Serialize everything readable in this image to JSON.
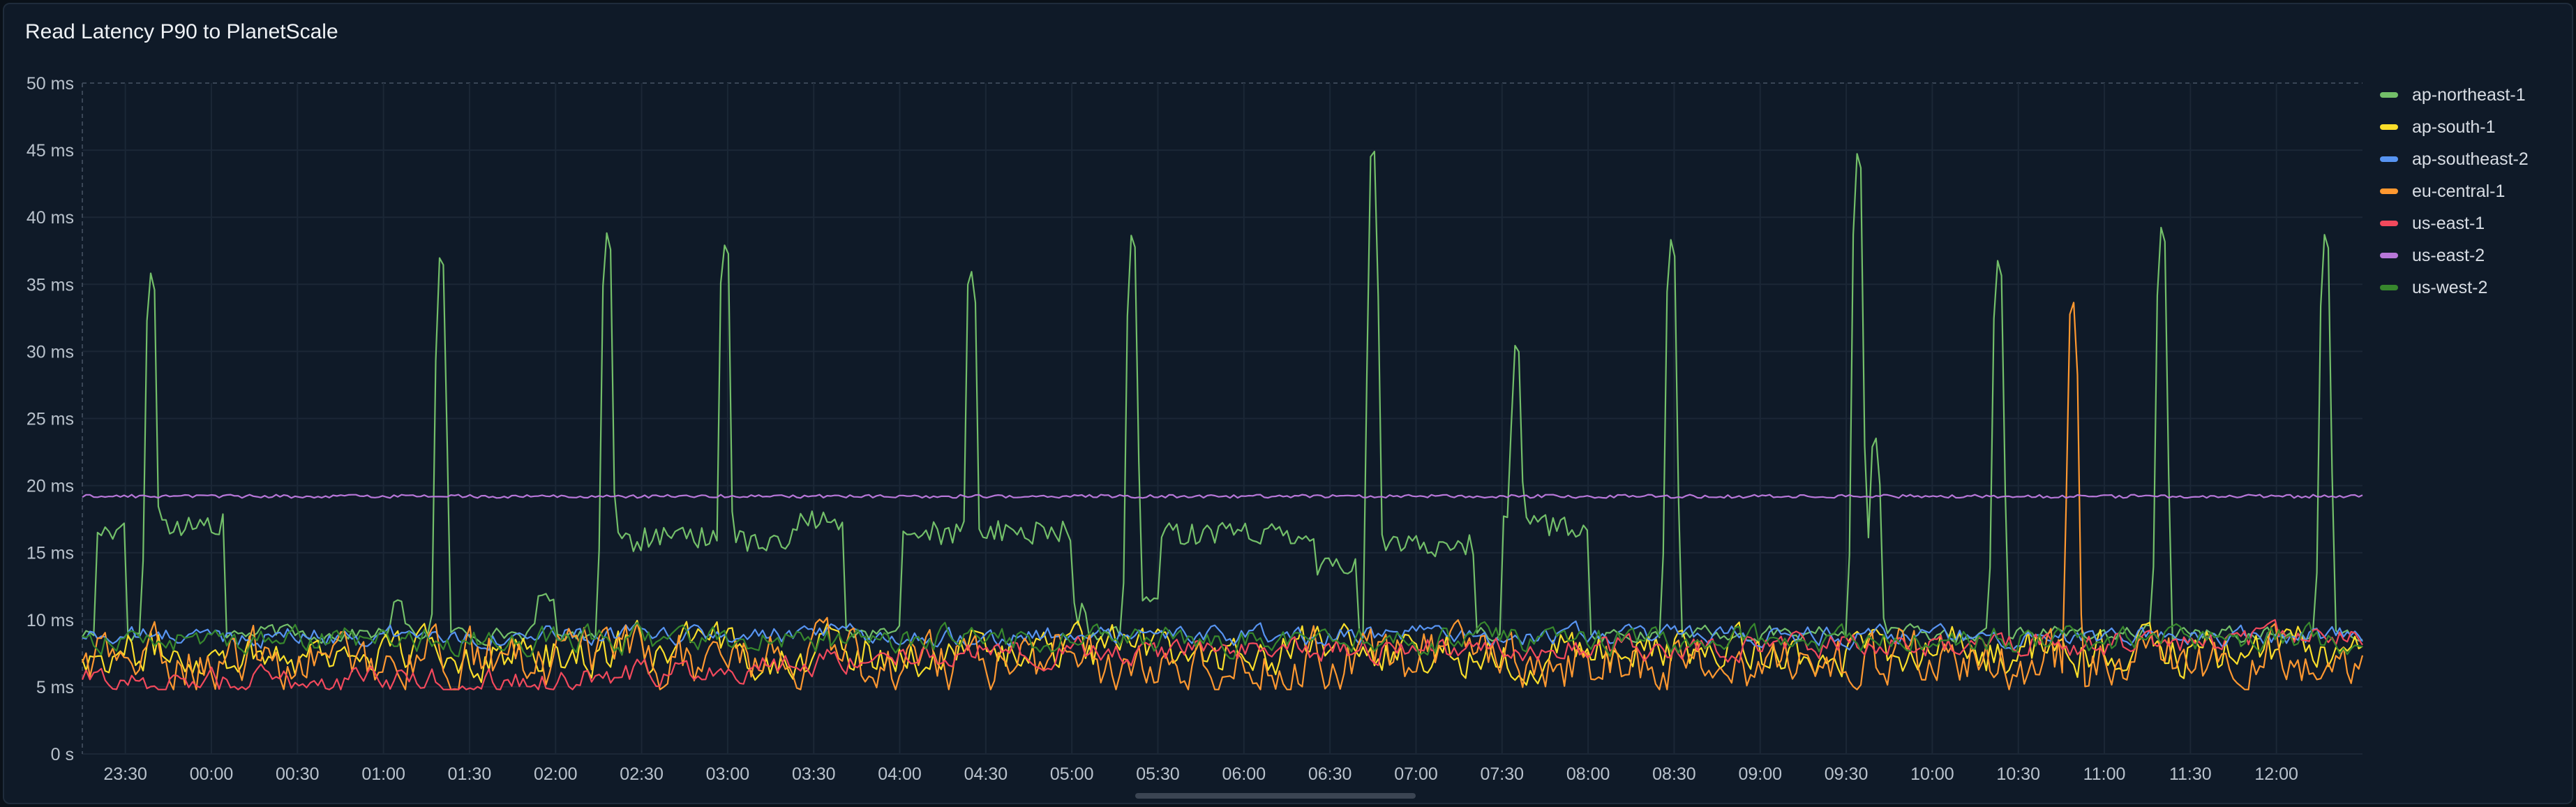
{
  "panel": {
    "title": "Read Latency P90 to PlanetScale"
  },
  "colors": {
    "background": "#0f1a28",
    "grid": "#1b2736",
    "axis_text": "#b9c2cc",
    "dashed_max": "#3a4656"
  },
  "chart_data": {
    "type": "line",
    "title": "Read Latency P90 to PlanetScale",
    "xlabel": "",
    "ylabel": "",
    "unit": "ms",
    "ylim": [
      0,
      50
    ],
    "y_ticks": [
      {
        "value": 0,
        "label": "0 s"
      },
      {
        "value": 5,
        "label": "5 ms"
      },
      {
        "value": 10,
        "label": "10 ms"
      },
      {
        "value": 15,
        "label": "15 ms"
      },
      {
        "value": 20,
        "label": "20 ms"
      },
      {
        "value": 25,
        "label": "25 ms"
      },
      {
        "value": 30,
        "label": "30 ms"
      },
      {
        "value": 35,
        "label": "35 ms"
      },
      {
        "value": 40,
        "label": "40 ms"
      },
      {
        "value": 45,
        "label": "45 ms"
      },
      {
        "value": 50,
        "label": "50 ms"
      }
    ],
    "x_range": [
      "23:15",
      "12:30"
    ],
    "x_ticks": [
      "23:30",
      "00:00",
      "00:30",
      "01:00",
      "01:30",
      "02:00",
      "02:30",
      "03:00",
      "03:30",
      "04:00",
      "04:30",
      "05:00",
      "05:30",
      "06:00",
      "06:30",
      "07:00",
      "07:30",
      "08:00",
      "08:30",
      "09:00",
      "09:30",
      "10:00",
      "10:30",
      "11:00",
      "11:30",
      "12:00"
    ],
    "grid": true,
    "legend_position": "right",
    "series": [
      {
        "name": "ap-northeast-1",
        "color": "#73bf69",
        "baseline": 9.0,
        "noise": 0.5,
        "spikes": [
          [
            "23:39",
            36
          ],
          [
            "01:05",
            11.5
          ],
          [
            "01:20",
            37.5
          ],
          [
            "02:18",
            39
          ],
          [
            "02:59",
            38
          ],
          [
            "04:25",
            36
          ],
          [
            "05:21",
            39
          ],
          [
            "06:45",
            45.5
          ],
          [
            "07:35",
            31
          ],
          [
            "08:29",
            38.5
          ],
          [
            "09:34",
            45
          ],
          [
            "09:40",
            24
          ],
          [
            "10:23",
            37
          ],
          [
            "11:20",
            39.5
          ],
          [
            "12:17",
            39
          ]
        ],
        "plateaus": [
          [
            "23:20",
            "23:30",
            16.8
          ],
          [
            "23:40",
            "00:05",
            17.0
          ],
          [
            "01:53",
            "02:00",
            12
          ],
          [
            "02:15",
            "03:25",
            16.0
          ],
          [
            "03:25",
            "03:40",
            17.5
          ],
          [
            "04:00",
            "05:00",
            16.5
          ],
          [
            "05:00",
            "05:05",
            10.5
          ],
          [
            "05:22",
            "05:30",
            11.5
          ],
          [
            "05:30",
            "06:25",
            16.5
          ],
          [
            "06:25",
            "06:40",
            14.0
          ],
          [
            "06:48",
            "07:20",
            15.5
          ],
          [
            "07:30",
            "08:00",
            17.0
          ]
        ]
      },
      {
        "name": "ap-south-1",
        "color": "#fade2a",
        "baseline": 7.6,
        "noise": 1.4
      },
      {
        "name": "ap-southeast-2",
        "color": "#5794f2",
        "baseline": 8.8,
        "noise": 0.6
      },
      {
        "name": "eu-central-1",
        "color": "#ff9830",
        "baseline": 7.0,
        "noise": 1.8,
        "spikes": [
          [
            "10:49",
            34
          ]
        ]
      },
      {
        "name": "us-east-1",
        "color": "#f2495c",
        "baseline": 5.6,
        "noise": 0.8,
        "trend": [
          [
            "23:15",
            5.5
          ],
          [
            "02:00",
            5.5
          ],
          [
            "04:00",
            7.5
          ],
          [
            "12:30",
            8.5
          ]
        ]
      },
      {
        "name": "us-east-2",
        "color": "#b877d9",
        "baseline": 19.2,
        "noise": 0.1
      },
      {
        "name": "us-west-2",
        "color": "#37872d",
        "baseline": 8.5,
        "noise": 0.8
      }
    ]
  }
}
